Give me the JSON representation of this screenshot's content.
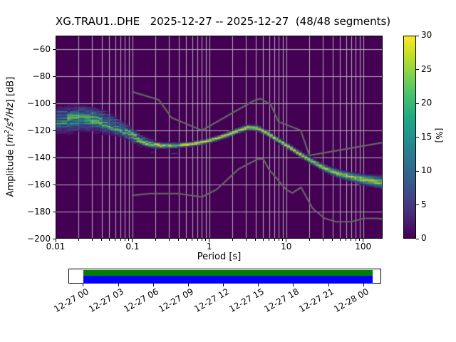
{
  "title": "XG.TRAU1..DHE   2025-12-27 -- 2025-12-27  (48/48 segments)",
  "xlabel": "Period [s]",
  "ylabel": {
    "prefix": "Amplitude [",
    "m": "m",
    "m_exp": "2",
    "s1": "/s",
    "s_exp": "4",
    "hz": "/Hz",
    "suffix": "] [dB]"
  },
  "colorbar_label": "[%]",
  "chart_data": {
    "type": "heatmap",
    "title": "XG.TRAU1..DHE   2025-12-27 -- 2025-12-27  (48/48 segments)",
    "xlabel": "Period [s]",
    "ylabel": "Amplitude [m^2/s^4/Hz] [dB]",
    "x_scale": "log",
    "xlim": [
      0.01,
      179
    ],
    "ylim": [
      -200,
      -50
    ],
    "grid": true,
    "background_color": "#440154",
    "grid_color": "#b0b0b0",
    "x_ticks": {
      "values": [
        0.01,
        0.1,
        1,
        10,
        100
      ],
      "labels": [
        "0.01",
        "0.1",
        "1",
        "10",
        "100"
      ]
    },
    "y_ticks": {
      "values": [
        -60,
        -80,
        -100,
        -120,
        -140,
        -160,
        -180,
        -200
      ],
      "labels": [
        "−60",
        "−80",
        "−100",
        "−120",
        "−140",
        "−160",
        "−180",
        "−200"
      ]
    },
    "colorbar": {
      "label": "[%]",
      "vmin": 0,
      "vmax": 30,
      "ticks": [
        0,
        5,
        10,
        15,
        20,
        25,
        30
      ],
      "tick_labels": [
        "0",
        "5",
        "10",
        "15",
        "20",
        "25",
        "30"
      ],
      "cmap": "viridis"
    },
    "viridis_stops": [
      [
        0.0,
        68,
        1,
        84
      ],
      [
        0.1,
        72,
        36,
        117
      ],
      [
        0.2,
        65,
        68,
        135
      ],
      [
        0.3,
        53,
        95,
        141
      ],
      [
        0.4,
        42,
        120,
        142
      ],
      [
        0.5,
        33,
        145,
        140
      ],
      [
        0.6,
        34,
        168,
        132
      ],
      [
        0.7,
        68,
        191,
        112
      ],
      [
        0.8,
        122,
        209,
        81
      ],
      [
        0.9,
        189,
        223,
        38
      ],
      [
        1.0,
        253,
        231,
        37
      ]
    ],
    "ppsd_mode": {
      "columns": 113,
      "db_bin_width": 1,
      "anchors_period_centerdb_sigma_peakpct": [
        [
          0.01,
          -113.5,
          4.5,
          15
        ],
        [
          0.015,
          -112.5,
          5.0,
          16
        ],
        [
          0.022,
          -111.8,
          4.8,
          16
        ],
        [
          0.032,
          -112.8,
          4.5,
          17
        ],
        [
          0.047,
          -115.5,
          4.0,
          18
        ],
        [
          0.068,
          -119.0,
          3.2,
          19
        ],
        [
          0.09,
          -123.0,
          2.4,
          22
        ],
        [
          0.12,
          -128.0,
          1.8,
          25
        ],
        [
          0.16,
          -131.0,
          1.3,
          28
        ],
        [
          0.25,
          -132.3,
          1.0,
          31
        ],
        [
          0.4,
          -132.0,
          0.9,
          32
        ],
        [
          0.6,
          -131.0,
          0.9,
          32
        ],
        [
          0.85,
          -129.4,
          0.9,
          32
        ],
        [
          1.2,
          -127.2,
          0.95,
          31
        ],
        [
          1.7,
          -124.3,
          1.0,
          30
        ],
        [
          2.4,
          -120.9,
          1.05,
          30
        ],
        [
          3.2,
          -118.8,
          1.1,
          30
        ],
        [
          4.2,
          -119.3,
          1.1,
          30
        ],
        [
          5.0,
          -121.3,
          1.05,
          30
        ],
        [
          6.5,
          -125.2,
          1.0,
          30
        ],
        [
          8.0,
          -128.5,
          1.0,
          30
        ],
        [
          10.0,
          -131.8,
          1.0,
          30
        ],
        [
          13.0,
          -136.0,
          1.1,
          29
        ],
        [
          17.0,
          -140.3,
          1.15,
          29
        ],
        [
          22.0,
          -144.0,
          1.2,
          28
        ],
        [
          28.0,
          -147.3,
          1.3,
          28
        ],
        [
          36.0,
          -150.3,
          1.4,
          28
        ],
        [
          47.0,
          -152.7,
          1.5,
          27
        ],
        [
          62.0,
          -154.5,
          1.6,
          27
        ],
        [
          82.0,
          -156.2,
          1.8,
          26
        ],
        [
          110.0,
          -157.6,
          2.0,
          28
        ],
        [
          145.0,
          -158.6,
          2.2,
          27
        ],
        [
          179.0,
          -159.3,
          2.4,
          25
        ]
      ]
    },
    "noise_models": {
      "color": "#666666",
      "nhnm_period_db": [
        [
          0.1,
          -91.5
        ],
        [
          0.22,
          -97.4
        ],
        [
          0.32,
          -110.5
        ],
        [
          0.8,
          -120.0
        ],
        [
          3.8,
          -98.0
        ],
        [
          4.6,
          -96.5
        ],
        [
          6.3,
          -101.0
        ],
        [
          7.9,
          -113.5
        ],
        [
          15.4,
          -120.0
        ],
        [
          20.0,
          -138.5
        ],
        [
          179.0,
          -129.0
        ]
      ],
      "nlnm_period_db": [
        [
          0.1,
          -168.0
        ],
        [
          0.17,
          -166.7
        ],
        [
          0.4,
          -166.7
        ],
        [
          0.8,
          -169.2
        ],
        [
          1.24,
          -163.7
        ],
        [
          2.4,
          -148.6
        ],
        [
          4.3,
          -141.1
        ],
        [
          5.0,
          -141.1
        ],
        [
          6.0,
          -149.0
        ],
        [
          10.0,
          -163.8
        ],
        [
          12.0,
          -166.2
        ],
        [
          15.6,
          -162.1
        ],
        [
          21.9,
          -177.5
        ],
        [
          31.6,
          -185.0
        ],
        [
          45.0,
          -187.5
        ],
        [
          70.0,
          -187.5
        ],
        [
          101.0,
          -185.0
        ],
        [
          154.0,
          -185.0
        ],
        [
          179.0,
          -185.5
        ]
      ]
    },
    "timeline": {
      "tick_labels": [
        "12-27 00",
        "12-27 03",
        "12-27 06",
        "12-27 09",
        "12-27 12",
        "12-27 15",
        "12-27 18",
        "12-27 21",
        "12-28 00"
      ],
      "first_tick_frac": 0.0456,
      "tick_spacing_frac": 0.1125,
      "data_start_frac": 0.0456,
      "data_end_frac": 0.9738,
      "bar_colors": {
        "data_available": "#008000",
        "data_used": "#0000ff"
      }
    }
  }
}
